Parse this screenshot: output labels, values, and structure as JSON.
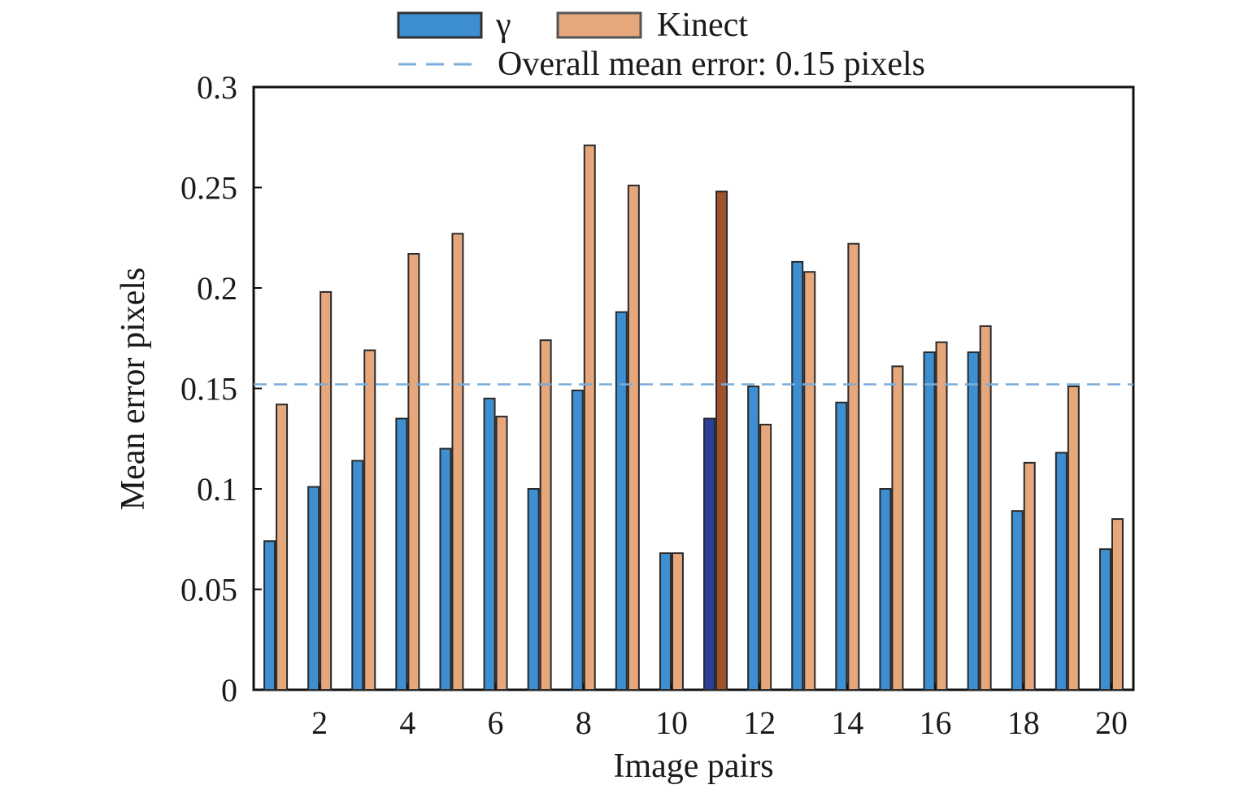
{
  "chart_data": {
    "type": "bar",
    "xlabel": "Image pairs",
    "ylabel": "Mean error pixels",
    "ylim": [
      0,
      0.3
    ],
    "yticks": [
      "0",
      "0.05",
      "0.1",
      "0.15",
      "0.2",
      "0.25",
      "0.3"
    ],
    "xticks": [
      "2",
      "4",
      "6",
      "8",
      "10",
      "12",
      "14",
      "16",
      "18",
      "20"
    ],
    "categories": [
      1,
      2,
      3,
      4,
      5,
      6,
      7,
      8,
      9,
      10,
      11,
      12,
      13,
      14,
      15,
      16,
      17,
      18,
      19,
      20
    ],
    "series": [
      {
        "name": "γ",
        "color": "#3d8fd1",
        "values": [
          0.074,
          0.101,
          0.114,
          0.135,
          0.12,
          0.145,
          0.1,
          0.149,
          0.188,
          0.068,
          0.135,
          0.151,
          0.213,
          0.143,
          0.1,
          0.168,
          0.168,
          0.089,
          0.118,
          0.07
        ]
      },
      {
        "name": "Kinect",
        "color": "#e5a77b",
        "values": [
          0.142,
          0.198,
          0.169,
          0.217,
          0.227,
          0.136,
          0.174,
          0.271,
          0.251,
          0.068,
          0.248,
          0.132,
          0.208,
          0.222,
          0.161,
          0.173,
          0.181,
          0.113,
          0.151,
          0.085
        ]
      }
    ],
    "highlight_colors": {
      "gamma": "#2b3f9a",
      "kinect": "#a0522d"
    },
    "highlight_index": 10,
    "reference_line": {
      "value": 0.152,
      "label": "Overall mean error: 0.15 pixels",
      "color": "#7aaedb"
    },
    "legend_position": "top-center",
    "grid": false
  }
}
